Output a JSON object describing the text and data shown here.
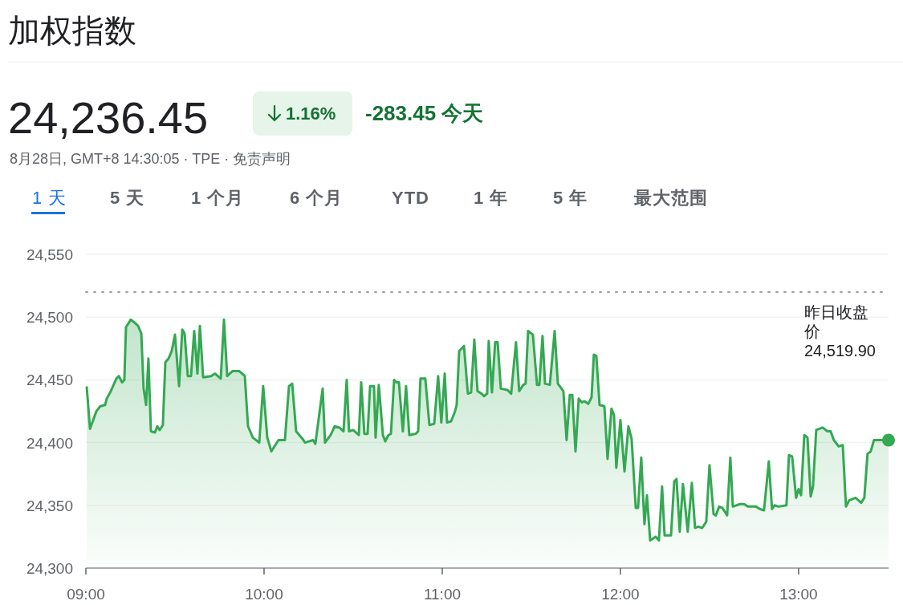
{
  "chart_data": {
    "type": "area",
    "title": "加权指数",
    "subtitle": "8月28日, GMT+8 14:30:05 · TPE · 免责声明",
    "annotations": [
      "24,236.45",
      "1.16%",
      "-283.45 今天",
      "1 天",
      "5 天",
      "1 个月",
      "6 个月",
      "YTD",
      "1 年",
      "5 年",
      "最大范围"
    ],
    "x": [
      9.005,
      9.023,
      9.059,
      9.081,
      9.108,
      9.117,
      9.14,
      9.171,
      9.185,
      9.203,
      9.216,
      9.225,
      9.252,
      9.27,
      9.293,
      9.311,
      9.324,
      9.338,
      9.351,
      9.365,
      9.387,
      9.401,
      9.414,
      9.432,
      9.446,
      9.464,
      9.482,
      9.5,
      9.523,
      9.541,
      9.554,
      9.572,
      9.59,
      9.608,
      9.626,
      9.64,
      9.658,
      9.703,
      9.725,
      9.757,
      9.775,
      9.793,
      9.824,
      9.86,
      9.892,
      9.91,
      9.937,
      9.973,
      9.995,
      10.018,
      10.041,
      10.081,
      10.117,
      10.14,
      10.158,
      10.18,
      10.216,
      10.23,
      10.275,
      10.288,
      10.329,
      10.342,
      10.374,
      10.396,
      10.423,
      10.446,
      10.464,
      10.477,
      10.5,
      10.532,
      10.545,
      10.563,
      10.581,
      10.595,
      10.617,
      10.626,
      10.644,
      10.667,
      10.68,
      10.698,
      10.712,
      10.73,
      10.743,
      10.757,
      10.779,
      10.797,
      10.815,
      10.851,
      10.865,
      10.878,
      10.905,
      10.928,
      10.955,
      10.977,
      10.995,
      11.014,
      11.027,
      11.05,
      11.072,
      11.081,
      11.095,
      11.122,
      11.144,
      11.162,
      11.18,
      11.198,
      11.221,
      11.234,
      11.252,
      11.261,
      11.279,
      11.297,
      11.311,
      11.329,
      11.365,
      11.387,
      11.414,
      11.432,
      11.455,
      11.468,
      11.482,
      11.509,
      11.532,
      11.545,
      11.563,
      11.577,
      11.604,
      11.631,
      11.649,
      11.68,
      11.698,
      11.716,
      11.73,
      11.748,
      11.766,
      11.784,
      11.797,
      11.82,
      11.838,
      11.851,
      11.865,
      11.883,
      11.91,
      11.928,
      11.95,
      11.964,
      11.977,
      12.0,
      12.023,
      12.045,
      12.063,
      12.086,
      12.099,
      12.117,
      12.135,
      12.149,
      12.167,
      12.198,
      12.216,
      12.234,
      12.248,
      12.284,
      12.302,
      12.315,
      12.333,
      12.351,
      12.378,
      12.401,
      12.419,
      12.437,
      12.459,
      12.482,
      12.5,
      12.523,
      12.536,
      12.554,
      12.572,
      12.599,
      12.617,
      12.631,
      12.671,
      12.694,
      12.716,
      12.761,
      12.784,
      12.806,
      12.833,
      12.851,
      12.865,
      12.887,
      12.932,
      12.946,
      12.964,
      12.986,
      13.0,
      13.014,
      13.032,
      13.05,
      13.068,
      13.081,
      13.099,
      13.135,
      13.162,
      13.18,
      13.198,
      13.225,
      13.248,
      13.266,
      13.284,
      13.32,
      13.351,
      13.369,
      13.387,
      13.405,
      13.423,
      13.459,
      13.505
    ],
    "series": [
      {
        "color": "#34a853",
        "values": [
          24444,
          24411,
          24425,
          24429,
          24430,
          24435,
          24441,
          24451,
          24453,
          24448,
          24450,
          24492,
          24498,
          24496,
          24493,
          24487,
          24443,
          24430,
          24467,
          24409,
          24408,
          24413,
          24410,
          24414,
          24464,
          24467,
          24473,
          24486,
          24445,
          24490,
          24487,
          24453,
          24453,
          24489,
          24455,
          24493,
          24452,
          24453,
          24455,
          24451,
          24498,
          24453,
          24457,
          24457,
          24453,
          24413,
          24404,
          24400,
          24445,
          24404,
          24393,
          24402,
          24402,
          24445,
          24447,
          24409,
          24403,
          24400,
          24402,
          24399,
          24443,
          24400,
          24406,
          24413,
          24412,
          24409,
          24450,
          24409,
          24410,
          24406,
          24448,
          24407,
          24407,
          24445,
          24445,
          24404,
          24446,
          24406,
          24401,
          24406,
          24407,
          24450,
          24448,
          24448,
          24409,
          24445,
          24406,
          24407,
          24409,
          24451,
          24451,
          24414,
          24415,
          24453,
          24416,
          24455,
          24416,
          24417,
          24425,
          24430,
          24473,
          24477,
          24439,
          24440,
          24482,
          24441,
          24439,
          24437,
          24439,
          24481,
          24440,
          24480,
          24480,
          24443,
          24442,
          24439,
          24480,
          24441,
          24446,
          24447,
          24489,
          24486,
          24446,
          24446,
          24485,
          24447,
          24446,
          24489,
          24447,
          24441,
          24402,
          24438,
          24438,
          24393,
          24435,
          24432,
          24433,
          24431,
          24436,
          24470,
          24469,
          24430,
          24429,
          24387,
          24427,
          24422,
          24380,
          24418,
          24377,
          24413,
          24403,
          24348,
          24348,
          24388,
          24335,
          24358,
          24322,
          24325,
          24322,
          24365,
          24326,
          24326,
          24369,
          24371,
          24329,
          24367,
          24329,
          24368,
          24332,
          24333,
          24332,
          24337,
          24382,
          24343,
          24342,
          24349,
          24348,
          24342,
          24388,
          24349,
          24351,
          24351,
          24349,
          24349,
          24347,
          24346,
          24385,
          24347,
          24350,
          24349,
          24350,
          24390,
          24389,
          24356,
          24363,
          24358,
          24406,
          24404,
          24357,
          24365,
          24410,
          24412,
          24409,
          24409,
          24402,
          24397,
          24398,
          24349,
          24354,
          24356,
          24352,
          24356,
          24391,
          24393,
          24402,
          24402,
          24402
        ]
      }
    ],
    "xlim": [
      9,
      13.505
    ],
    "xticks": [
      {
        "value": 9,
        "label": "09:00"
      },
      {
        "value": 10,
        "label": "10:00"
      },
      {
        "value": 11,
        "label": "11:00"
      },
      {
        "value": 12,
        "label": "12:00"
      },
      {
        "value": 13,
        "label": "13:00"
      }
    ],
    "ylim": [
      24300,
      24550
    ],
    "yticks": [
      {
        "value": 24300,
        "label": "24,300"
      },
      {
        "value": 24350,
        "label": "24,350"
      },
      {
        "value": 24400,
        "label": "24,400"
      },
      {
        "value": 24450,
        "label": "24,450"
      },
      {
        "value": 24500,
        "label": "24,500"
      },
      {
        "value": 24550,
        "label": "24,550"
      }
    ],
    "grid": "y",
    "ref_lines": [
      {
        "axis": "y",
        "value": 24519.9,
        "label": "昨日收盘价 24,519.90",
        "color": "#9aa0a6",
        "line_style": "dotted"
      }
    ]
  }
}
